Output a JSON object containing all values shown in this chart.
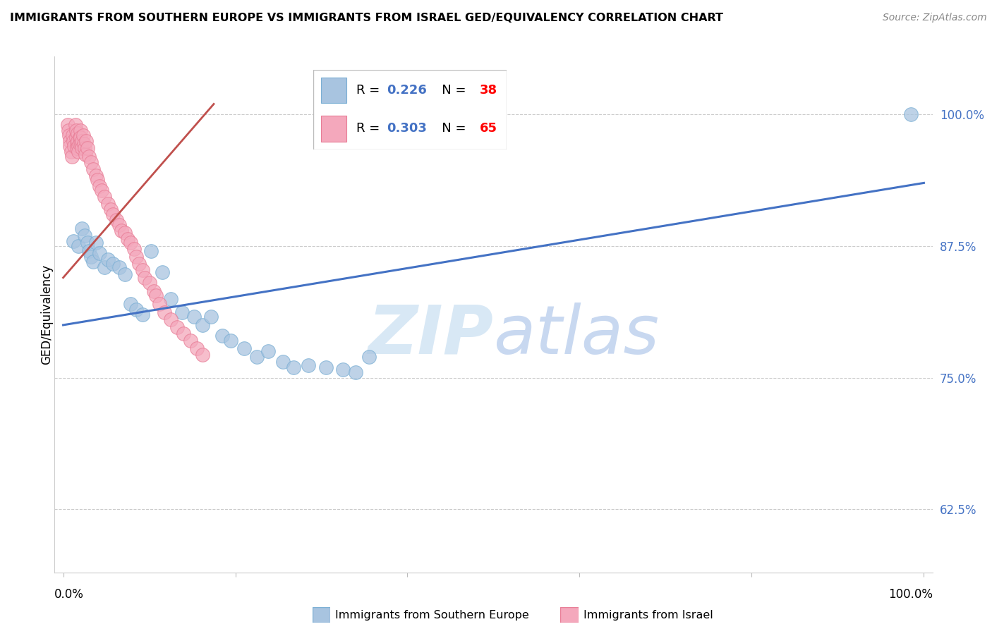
{
  "title": "IMMIGRANTS FROM SOUTHERN EUROPE VS IMMIGRANTS FROM ISRAEL GED/EQUIVALENCY CORRELATION CHART",
  "source": "Source: ZipAtlas.com",
  "ylabel": "GED/Equivalency",
  "ytick_labels": [
    "62.5%",
    "75.0%",
    "87.5%",
    "100.0%"
  ],
  "ytick_values": [
    0.625,
    0.75,
    0.875,
    1.0
  ],
  "xlim": [
    -0.01,
    1.01
  ],
  "ylim": [
    0.565,
    1.055
  ],
  "blue_r": 0.226,
  "blue_n": 38,
  "pink_r": 0.303,
  "pink_n": 65,
  "blue_color": "#A8C4E0",
  "pink_color": "#F4A8BC",
  "blue_line_color": "#4472C4",
  "pink_line_color": "#C0504D",
  "blue_edge_color": "#7BAFD4",
  "pink_edge_color": "#E87D96",
  "watermark_zip": "ZIP",
  "watermark_atlas": "atlas",
  "watermark_color_zip": "#D8E8F5",
  "watermark_color_atlas": "#C8D8F0",
  "legend_r_color": "#4472C4",
  "legend_n_color": "#FF0000",
  "blue_line_x0": 0.0,
  "blue_line_x1": 1.0,
  "blue_line_y0": 0.8,
  "blue_line_y1": 0.935,
  "pink_line_x0": 0.0,
  "pink_line_x1": 0.175,
  "pink_line_y0": 0.845,
  "pink_line_y1": 1.01,
  "blue_x": [
    0.012,
    0.018,
    0.022,
    0.025,
    0.028,
    0.03,
    0.032,
    0.035,
    0.038,
    0.042,
    0.048,
    0.052,
    0.058,
    0.065,
    0.072,
    0.078,
    0.085,
    0.092,
    0.102,
    0.115,
    0.125,
    0.138,
    0.152,
    0.162,
    0.172,
    0.185,
    0.195,
    0.21,
    0.225,
    0.238,
    0.255,
    0.268,
    0.285,
    0.305,
    0.325,
    0.34,
    0.355,
    0.985
  ],
  "blue_y": [
    0.88,
    0.875,
    0.892,
    0.885,
    0.878,
    0.87,
    0.865,
    0.86,
    0.878,
    0.868,
    0.855,
    0.862,
    0.858,
    0.855,
    0.848,
    0.82,
    0.815,
    0.81,
    0.87,
    0.85,
    0.825,
    0.812,
    0.808,
    0.8,
    0.808,
    0.79,
    0.785,
    0.778,
    0.77,
    0.775,
    0.765,
    0.76,
    0.762,
    0.76,
    0.758,
    0.755,
    0.77,
    1.0
  ],
  "pink_x": [
    0.005,
    0.006,
    0.007,
    0.008,
    0.008,
    0.009,
    0.01,
    0.011,
    0.012,
    0.013,
    0.014,
    0.015,
    0.015,
    0.016,
    0.016,
    0.017,
    0.017,
    0.018,
    0.018,
    0.019,
    0.019,
    0.02,
    0.02,
    0.021,
    0.022,
    0.022,
    0.023,
    0.024,
    0.025,
    0.026,
    0.027,
    0.028,
    0.03,
    0.032,
    0.035,
    0.038,
    0.04,
    0.042,
    0.045,
    0.048,
    0.052,
    0.055,
    0.058,
    0.062,
    0.065,
    0.068,
    0.072,
    0.075,
    0.078,
    0.082,
    0.085,
    0.088,
    0.092,
    0.095,
    0.1,
    0.105,
    0.108,
    0.112,
    0.118,
    0.125,
    0.132,
    0.14,
    0.148,
    0.155,
    0.162
  ],
  "pink_y": [
    0.99,
    0.985,
    0.98,
    0.975,
    0.97,
    0.965,
    0.96,
    0.98,
    0.975,
    0.97,
    0.99,
    0.985,
    0.978,
    0.972,
    0.968,
    0.982,
    0.975,
    0.97,
    0.965,
    0.978,
    0.972,
    0.985,
    0.978,
    0.972,
    0.975,
    0.968,
    0.98,
    0.972,
    0.968,
    0.962,
    0.975,
    0.968,
    0.96,
    0.955,
    0.948,
    0.942,
    0.938,
    0.932,
    0.928,
    0.922,
    0.915,
    0.91,
    0.905,
    0.9,
    0.895,
    0.89,
    0.888,
    0.882,
    0.878,
    0.872,
    0.865,
    0.858,
    0.852,
    0.845,
    0.84,
    0.832,
    0.828,
    0.82,
    0.812,
    0.805,
    0.798,
    0.792,
    0.785,
    0.778,
    0.772
  ]
}
